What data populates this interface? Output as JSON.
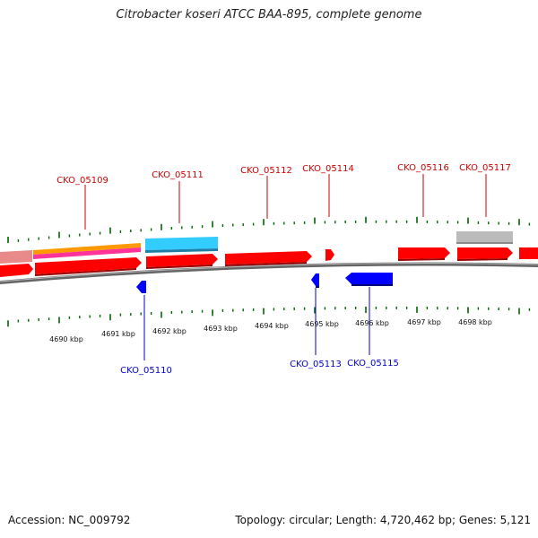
{
  "title": "Citrobacter koseri ATCC BAA-895, complete genome",
  "footer": {
    "accession": "Accession: NC_009792",
    "summary": "Topology: circular; Length: 4,720,462 bp; Genes: 5,121"
  },
  "colors": {
    "forward_cds": "#ff0000",
    "reverse_cds": "#0000ff",
    "orange_feature": "#ff9900",
    "magenta_feature": "#ff3399",
    "cyan_feature": "#33ccff",
    "gray_feature": "#bbbbbb",
    "ticks": "#006600",
    "top_labels": "#cc0000",
    "bottom_labels": "#0000cc"
  },
  "scale_labels": [
    "4690 kbp",
    "4691 kbp",
    "4692 kbp",
    "4693 kbp",
    "4694 kbp",
    "4695 kbp",
    "4696 kbp",
    "4697 kbp",
    "4698 kbp"
  ],
  "top_gene_labels": [
    "CKO_05109",
    "CKO_05111",
    "CKO_05112",
    "CKO_05114",
    "CKO_05116",
    "CKO_05117"
  ],
  "bottom_gene_labels": [
    "CKO_05110",
    "CKO_05113",
    "CKO_05115"
  ]
}
